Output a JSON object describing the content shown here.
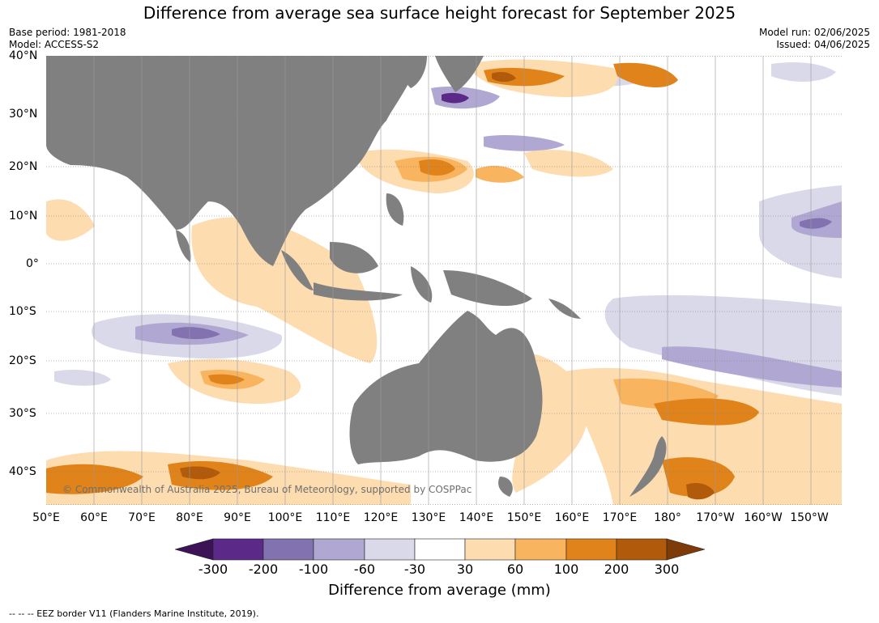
{
  "title": "Difference from average sea surface height forecast for September 2025",
  "meta_left": [
    "Base period: 1981-2018",
    "Model: ACCESS-S2"
  ],
  "meta_right": [
    "Model run: 02/06/2025",
    "Issued: 04/06/2025"
  ],
  "lat_labels": [
    "40°N",
    "30°N",
    "20°N",
    "10°N",
    "0°",
    "10°S",
    "20°S",
    "30°S",
    "40°S"
  ],
  "lon_labels": [
    "50°E",
    "60°E",
    "70°E",
    "80°E",
    "90°E",
    "100°E",
    "110°E",
    "120°E",
    "130°E",
    "140°E",
    "150°E",
    "160°E",
    "170°E",
    "180°",
    "170°W",
    "160°W",
    "150°W"
  ],
  "copyright": "© Commonwealth of Australia 2025, Bureau of Meteorology, supported by COSPPac",
  "colorbar": {
    "ticks": [
      "-300",
      "-200",
      "-100",
      "-60",
      "-30",
      "30",
      "60",
      "100",
      "200",
      "300"
    ],
    "colors": [
      "#3d1257",
      "#5b2a88",
      "#8272b0",
      "#b0a8d2",
      "#d9d9ea",
      "#ffffff",
      "#fddcb0",
      "#f8b45e",
      "#e0831a",
      "#b25a0b",
      "#7e3a08"
    ],
    "title": "Difference from average (mm)"
  },
  "footer": "--  --  -- EEZ border V11 (Flanders Marine Institute, 2019).",
  "colors": {
    "land": "#808080",
    "ocean": "#ffffff"
  }
}
